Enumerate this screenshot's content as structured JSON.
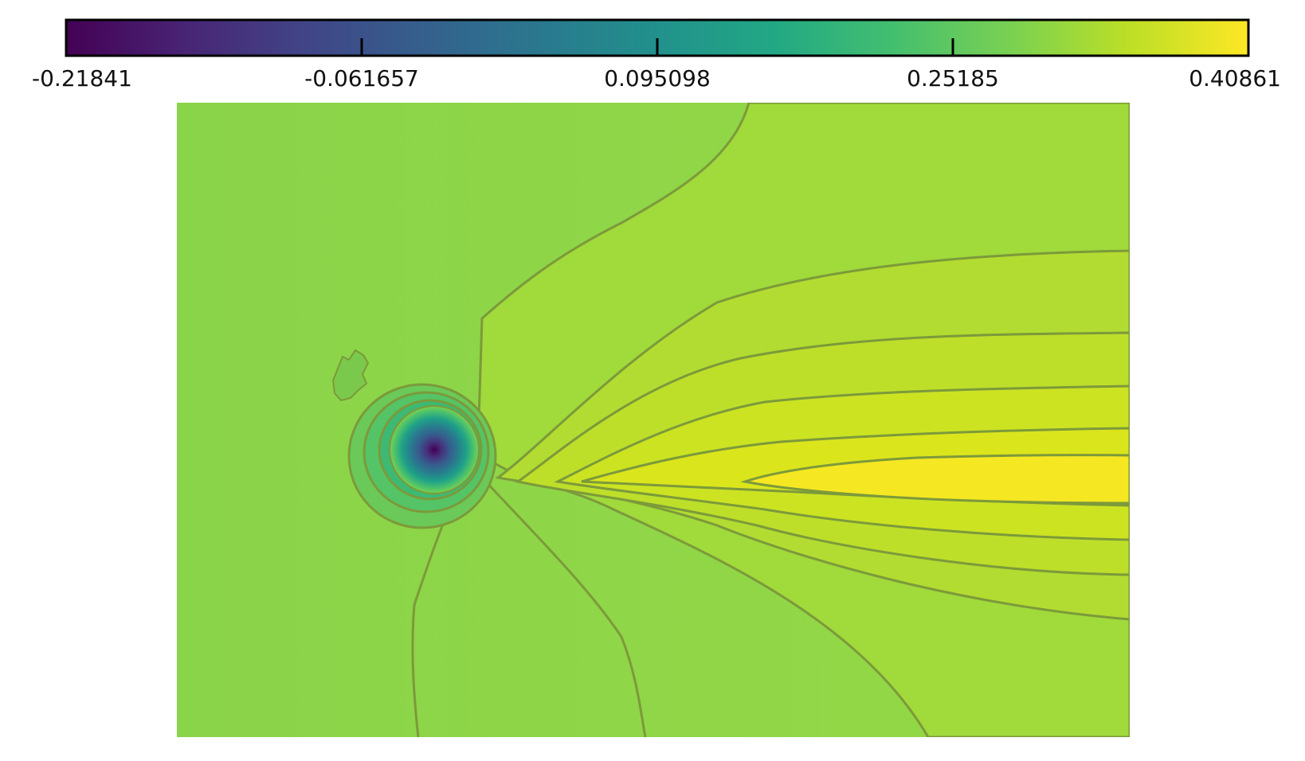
{
  "chart_data": {
    "type": "heatmap",
    "colormap": "viridis",
    "colorbar": {
      "orientation": "horizontal",
      "placement": "top",
      "range": [
        -0.21841,
        0.40861
      ],
      "ticks": [
        {
          "value": -0.21841,
          "label": "-0.21841"
        },
        {
          "value": -0.061657,
          "label": "-0.061657"
        },
        {
          "value": 0.095098,
          "label": "0.095098"
        },
        {
          "value": 0.25185,
          "label": "0.25185"
        },
        {
          "value": 0.40861,
          "label": "0.40861"
        }
      ]
    },
    "field": {
      "background_value": 0.27,
      "minimum_value": -0.21841,
      "maximum_value": 0.40861,
      "contour_lines": true
    },
    "title": "",
    "xlabel": "",
    "ylabel": ""
  }
}
